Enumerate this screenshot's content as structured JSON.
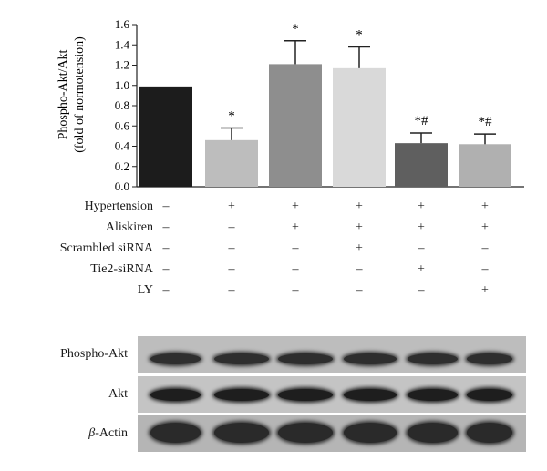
{
  "chart_data": {
    "type": "bar",
    "ylabel_line1": "Phospho-Akt/Akt",
    "ylabel_line2": "(fold of normotension)",
    "ylim": [
      0,
      1.6
    ],
    "yticks": [
      "0.0",
      "0.2",
      "0.4",
      "0.6",
      "0.8",
      "1.0",
      "1.2",
      "1.4",
      "1.6"
    ],
    "values": [
      0.99,
      0.46,
      1.21,
      1.17,
      0.43,
      0.42
    ],
    "errors": [
      0.0,
      0.12,
      0.23,
      0.21,
      0.1,
      0.1
    ],
    "annotations": [
      "",
      "*",
      "*",
      "*",
      "*#",
      "*#"
    ],
    "colors": [
      "#1c1c1c",
      "#bdbdbd",
      "#8e8e8e",
      "#d9d9d9",
      "#5f5f5f",
      "#b0b0b0"
    ]
  },
  "conditions": [
    {
      "label": "Hypertension",
      "signs": [
        "–",
        "+",
        "+",
        "+",
        "+",
        "+"
      ]
    },
    {
      "label": "Aliskiren",
      "signs": [
        "–",
        "–",
        "+",
        "+",
        "+",
        "+"
      ]
    },
    {
      "label": "Scrambled siRNA",
      "signs": [
        "–",
        "–",
        "–",
        "+",
        "–",
        "–"
      ]
    },
    {
      "label": "Tie2-siRNA",
      "signs": [
        "–",
        "–",
        "–",
        "–",
        "+",
        "–"
      ]
    },
    {
      "label": "LY",
      "signs": [
        "–",
        "–",
        "–",
        "–",
        "–",
        "+"
      ]
    }
  ],
  "blots": [
    {
      "label": "Phospho-Akt",
      "prefix": ""
    },
    {
      "label": "Akt",
      "prefix": ""
    },
    {
      "label": "-Actin",
      "prefix": "β"
    }
  ]
}
